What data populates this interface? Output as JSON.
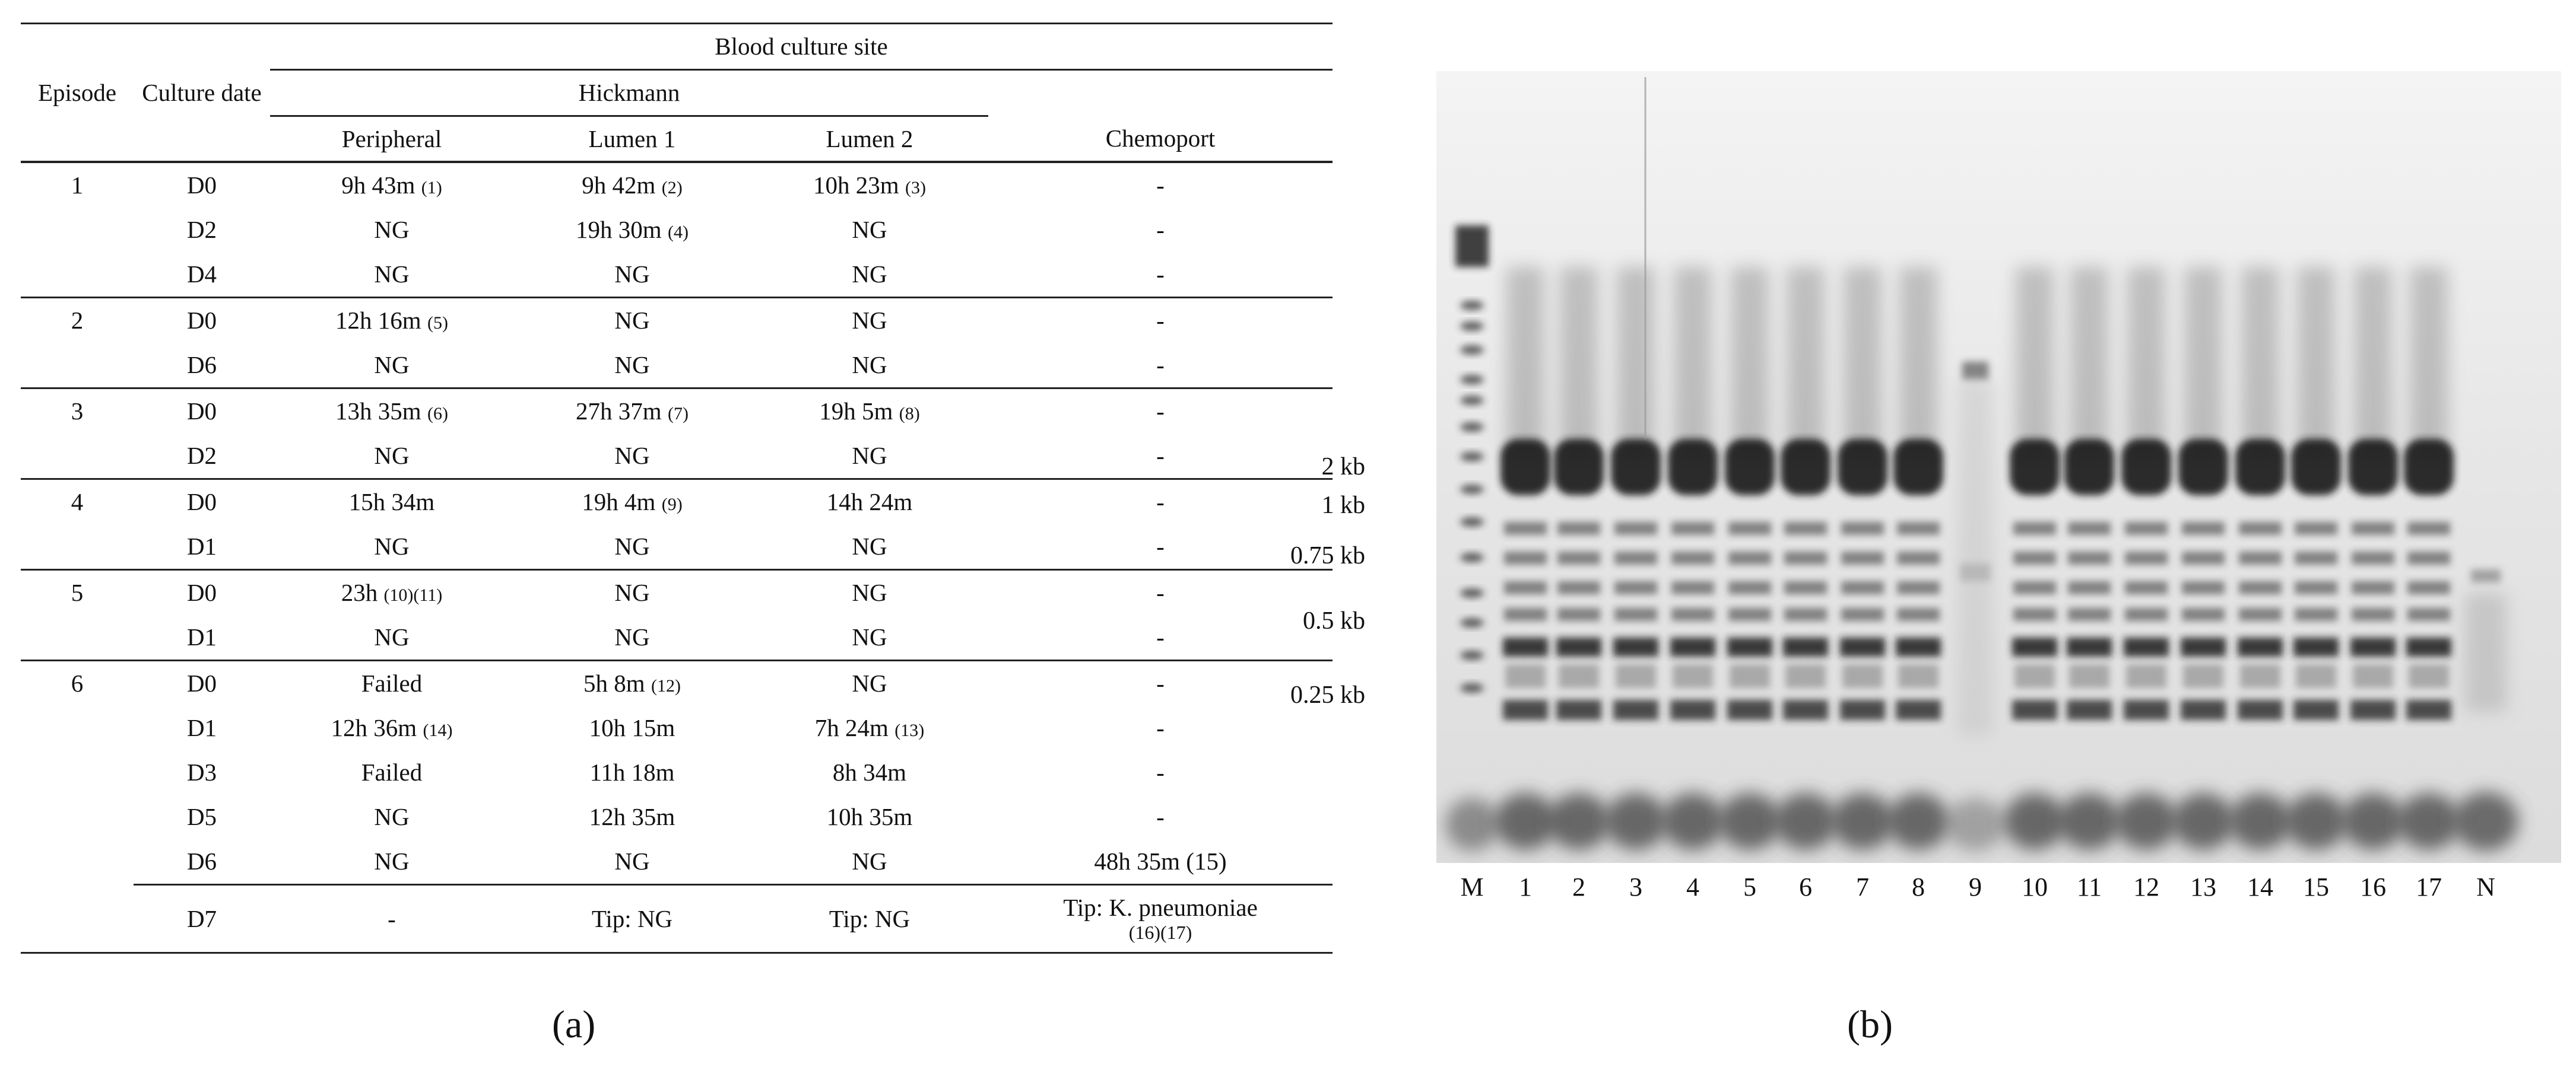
{
  "table": {
    "header": {
      "episode": "Episode",
      "culture_date": "Culture date",
      "site_group": "Blood culture site",
      "hickmann": "Hickmann",
      "peripheral": "Peripheral",
      "lumen1": "Lumen 1",
      "lumen2": "Lumen 2",
      "chemoport": "Chemoport"
    },
    "rows": [
      {
        "episode": "1",
        "date": "D0",
        "peripheral": "9h 43m",
        "p_ref": "(1)",
        "lumen1": "9h 42m",
        "l1_ref": "(2)",
        "lumen2": "10h 23m",
        "l2_ref": "(3)",
        "chemoport": "-",
        "end": false
      },
      {
        "episode": "",
        "date": "D2",
        "peripheral": "NG",
        "p_ref": "",
        "lumen1": "19h 30m",
        "l1_ref": "(4)",
        "lumen2": "NG",
        "l2_ref": "",
        "chemoport": "-",
        "end": false
      },
      {
        "episode": "",
        "date": "D4",
        "peripheral": "NG",
        "p_ref": "",
        "lumen1": "NG",
        "l1_ref": "",
        "lumen2": "NG",
        "l2_ref": "",
        "chemoport": "-",
        "end": true
      },
      {
        "episode": "2",
        "date": "D0",
        "peripheral": "12h 16m",
        "p_ref": "(5)",
        "lumen1": "NG",
        "l1_ref": "",
        "lumen2": "NG",
        "l2_ref": "",
        "chemoport": "-",
        "end": false
      },
      {
        "episode": "",
        "date": "D6",
        "peripheral": "NG",
        "p_ref": "",
        "lumen1": "NG",
        "l1_ref": "",
        "lumen2": "NG",
        "l2_ref": "",
        "chemoport": "-",
        "end": true
      },
      {
        "episode": "3",
        "date": "D0",
        "peripheral": "13h 35m",
        "p_ref": "(6)",
        "lumen1": "27h 37m",
        "l1_ref": "(7)",
        "lumen2": "19h 5m",
        "l2_ref": "(8)",
        "chemoport": "-",
        "end": false
      },
      {
        "episode": "",
        "date": "D2",
        "peripheral": "NG",
        "p_ref": "",
        "lumen1": "NG",
        "l1_ref": "",
        "lumen2": "NG",
        "l2_ref": "",
        "chemoport": "-",
        "end": true
      },
      {
        "episode": "4",
        "date": "D0",
        "peripheral": "15h 34m",
        "p_ref": "",
        "lumen1": "19h 4m",
        "l1_ref": "(9)",
        "lumen2": "14h 24m",
        "l2_ref": "",
        "chemoport": "-",
        "end": false
      },
      {
        "episode": "",
        "date": "D1",
        "peripheral": "NG",
        "p_ref": "",
        "lumen1": "NG",
        "l1_ref": "",
        "lumen2": "NG",
        "l2_ref": "",
        "chemoport": "-",
        "end": true
      },
      {
        "episode": "5",
        "date": "D0",
        "peripheral": "23h",
        "p_ref": "(10)(11)",
        "lumen1": "NG",
        "l1_ref": "",
        "lumen2": "NG",
        "l2_ref": "",
        "chemoport": "-",
        "end": false
      },
      {
        "episode": "",
        "date": "D1",
        "peripheral": "NG",
        "p_ref": "",
        "lumen1": "NG",
        "l1_ref": "",
        "lumen2": "NG",
        "l2_ref": "",
        "chemoport": "-",
        "end": true
      },
      {
        "episode": "6",
        "date": "D0",
        "peripheral": "Failed",
        "p_ref": "",
        "lumen1": "5h 8m",
        "l1_ref": "(12)",
        "lumen2": "NG",
        "l2_ref": "",
        "chemoport": "-",
        "end": false
      },
      {
        "episode": "",
        "date": "D1",
        "peripheral": "12h 36m",
        "p_ref": "(14)",
        "lumen1": "10h 15m",
        "l1_ref": "",
        "lumen2": "7h 24m",
        "l2_ref": "(13)",
        "chemoport": "-",
        "end": false
      },
      {
        "episode": "",
        "date": "D3",
        "peripheral": "Failed",
        "p_ref": "",
        "lumen1": "11h 18m",
        "l1_ref": "",
        "lumen2": "8h 34m",
        "l2_ref": "",
        "chemoport": "-",
        "end": false
      },
      {
        "episode": "",
        "date": "D5",
        "peripheral": "NG",
        "p_ref": "",
        "lumen1": "12h 35m",
        "l1_ref": "",
        "lumen2": "10h 35m",
        "l2_ref": "",
        "chemoport": "-",
        "end": false
      },
      {
        "episode": "",
        "date": "D6",
        "peripheral": "NG",
        "p_ref": "",
        "lumen1": "NG",
        "l1_ref": "",
        "lumen2": "NG",
        "l2_ref": "",
        "chemoport": "48h 35m (15)",
        "end": false
      }
    ],
    "last_row": {
      "date": "D7",
      "peripheral": "-",
      "lumen1": "Tip: NG",
      "lumen2": "Tip: NG",
      "chemoport_line1": "Tip: K. pneumoniae",
      "chemoport_line2": "(16)(17)"
    }
  },
  "panel_a_label": "(a)",
  "panel_b_label": "(b)",
  "gel": {
    "marker_labels": [
      "2 kb",
      "1 kb",
      "0.75 kb",
      "0.5 kb",
      "0.25 kb"
    ],
    "lane_labels": [
      "M",
      "1",
      "2",
      "3",
      "4",
      "5",
      "6",
      "7",
      "8",
      "9",
      "10",
      "11",
      "12",
      "13",
      "14",
      "15",
      "16",
      "17",
      "N"
    ]
  }
}
